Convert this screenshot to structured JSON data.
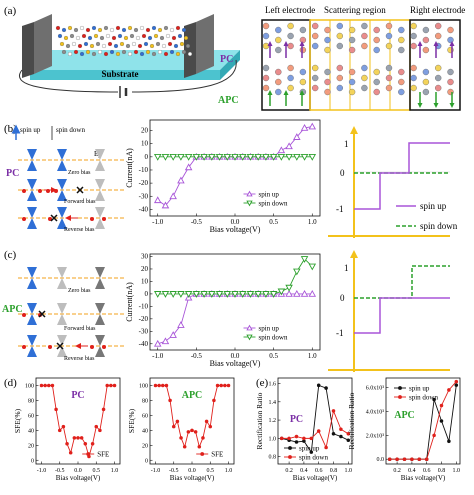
{
  "panel_labels": {
    "a": "(a)",
    "b": "(b)",
    "c": "(c)",
    "d": "(d)",
    "e": "(e)"
  },
  "panel_a": {
    "substrate_label": "Substrate",
    "regions": [
      "Left electrode",
      "Scattering region",
      "Right electrode"
    ],
    "pc_label": "PC",
    "apc_label": "APC"
  },
  "panel_b": {
    "legend_spin_up": "spin up",
    "legend_spin_down": "spin down",
    "ef_label": "E",
    "ef_sub": "f",
    "row_labels": [
      "Zero bias",
      "Forward bias",
      "Reverse bias"
    ],
    "side_label": "PC"
  },
  "panel_c": {
    "row_labels": [
      "Zero bias",
      "Forward bias",
      "Reverse bias"
    ],
    "side_label": "APC"
  },
  "step_legend": {
    "spin_up": "spin up",
    "spin_down": "spin down"
  },
  "step_ticks": {
    "top": "1",
    "mid": "0",
    "bot": "-1"
  },
  "chart_data": [
    {
      "type": "line",
      "id": "iv_pc",
      "xlabel": "Bias voltage(V)",
      "ylabel": "Current(nA)",
      "xlim": [
        -1.1,
        1.1
      ],
      "ylim": [
        -45,
        28
      ],
      "xticks": [
        -1.0,
        -0.5,
        0.0,
        0.5,
        1.0
      ],
      "xtick_labels": [
        "-1.0",
        "-0.5",
        "0.0",
        "0.5",
        "1.0"
      ],
      "yticks": [
        20,
        10,
        0,
        -10,
        -20,
        -30,
        -40
      ],
      "ytick_labels": [
        "20",
        "10",
        "0",
        "-10",
        "-20",
        "-30",
        "-40"
      ],
      "series": [
        {
          "name": "spin up",
          "color": "#a855d8",
          "marker": "triangle-up",
          "x": [
            -1.0,
            -0.9,
            -0.8,
            -0.7,
            -0.6,
            -0.5,
            -0.4,
            -0.3,
            -0.2,
            -0.1,
            0.0,
            0.1,
            0.2,
            0.3,
            0.4,
            0.5,
            0.6,
            0.7,
            0.8,
            0.9,
            1.0
          ],
          "y": [
            -33,
            -37,
            -30,
            -18,
            -8,
            0,
            0,
            0,
            0,
            0,
            0,
            0,
            0,
            0,
            0,
            0,
            5,
            8,
            15,
            22,
            23
          ]
        },
        {
          "name": "spin down",
          "color": "#2ca02c",
          "marker": "triangle-down",
          "x": [
            -1.0,
            -0.9,
            -0.8,
            -0.7,
            -0.6,
            -0.5,
            -0.4,
            -0.3,
            -0.2,
            -0.1,
            0.0,
            0.1,
            0.2,
            0.3,
            0.4,
            0.5,
            0.6,
            0.7,
            0.8,
            0.9,
            1.0
          ],
          "y": [
            0,
            0,
            0,
            0,
            0,
            0,
            0,
            0,
            0,
            0,
            0,
            0,
            0,
            0,
            0,
            0,
            0,
            0,
            0,
            0,
            0
          ]
        }
      ]
    },
    {
      "type": "line",
      "id": "iv_apc",
      "xlabel": "Bias voltage(V)",
      "ylabel": "Current(nA)",
      "xlim": [
        -1.1,
        1.1
      ],
      "ylim": [
        -45,
        32
      ],
      "xticks": [
        -1.0,
        -0.5,
        0.0,
        0.5,
        1.0
      ],
      "xtick_labels": [
        "-1.0",
        "-0.5",
        "0.0",
        "0.5",
        "1.0"
      ],
      "yticks": [
        30,
        20,
        10,
        0,
        -10,
        -20,
        -30,
        -40
      ],
      "ytick_labels": [
        "30",
        "20",
        "10",
        "0",
        "-10",
        "-20",
        "-30",
        "-40"
      ],
      "series": [
        {
          "name": "spin up",
          "color": "#a855d8",
          "marker": "triangle-up",
          "x": [
            -1.0,
            -0.9,
            -0.8,
            -0.7,
            -0.6,
            -0.5,
            -0.4,
            -0.3,
            -0.2,
            -0.1,
            0.0,
            0.1,
            0.2,
            0.3,
            0.4,
            0.5,
            0.6,
            0.7,
            0.8,
            0.9,
            1.0
          ],
          "y": [
            -40,
            -38,
            -33,
            -25,
            -3,
            0,
            0,
            0,
            0,
            0,
            0,
            0,
            0,
            0,
            0,
            0,
            0,
            0,
            0,
            0,
            0
          ]
        },
        {
          "name": "spin down",
          "color": "#2ca02c",
          "marker": "triangle-down",
          "x": [
            -1.0,
            -0.9,
            -0.8,
            -0.7,
            -0.6,
            -0.5,
            -0.4,
            -0.3,
            -0.2,
            -0.1,
            0.0,
            0.1,
            0.2,
            0.3,
            0.4,
            0.5,
            0.6,
            0.7,
            0.8,
            0.9,
            1.0
          ],
          "y": [
            0,
            0,
            0,
            0,
            0,
            0,
            0,
            0,
            0,
            0,
            0,
            0,
            0,
            0,
            0,
            0,
            2,
            5,
            18,
            28,
            22
          ]
        }
      ]
    },
    {
      "type": "line",
      "id": "sfe_pc",
      "title": "PC",
      "xlabel": "Bias voltage(V)",
      "ylabel": "SFE(%)",
      "xlim": [
        -1.15,
        1.15
      ],
      "ylim": [
        -5,
        110
      ],
      "xticks": [
        -1.0,
        -0.5,
        0.0,
        0.5,
        1.0
      ],
      "xtick_labels": [
        "-1.0",
        "-0.5",
        "0.0",
        "0.5",
        "1.0"
      ],
      "yticks": [
        0,
        20,
        40,
        60,
        80,
        100
      ],
      "ytick_labels": [
        "0",
        "20",
        "40",
        "60",
        "80",
        "100"
      ],
      "series": [
        {
          "name": "SFE",
          "color": "#e0201b",
          "marker": "circle",
          "x": [
            -1.0,
            -0.9,
            -0.8,
            -0.7,
            -0.6,
            -0.5,
            -0.4,
            -0.3,
            -0.2,
            -0.1,
            0.0,
            0.1,
            0.2,
            0.3,
            0.4,
            0.5,
            0.6,
            0.7,
            0.8,
            0.9,
            1.0
          ],
          "y": [
            100,
            100,
            100,
            100,
            68,
            40,
            45,
            22,
            10,
            30,
            30,
            30,
            22,
            5,
            22,
            45,
            40,
            68,
            100,
            100,
            100
          ]
        }
      ]
    },
    {
      "type": "line",
      "id": "sfe_apc",
      "title": "APC",
      "xlabel": "Bias voltage(V)",
      "ylabel": "SFE(%)",
      "xlim": [
        -1.15,
        1.15
      ],
      "ylim": [
        -5,
        110
      ],
      "xticks": [
        -1.0,
        -0.5,
        0.0,
        0.5,
        1.0
      ],
      "xtick_labels": [
        "-1.0",
        "-0.5",
        "0.0",
        "0.5",
        "1.0"
      ],
      "yticks": [
        0,
        20,
        40,
        60,
        80,
        100
      ],
      "ytick_labels": [
        "0",
        "20",
        "40",
        "60",
        "80",
        "100"
      ],
      "series": [
        {
          "name": "SFE",
          "color": "#e0201b",
          "marker": "circle",
          "x": [
            -1.0,
            -0.9,
            -0.8,
            -0.7,
            -0.6,
            -0.5,
            -0.4,
            -0.3,
            -0.2,
            -0.1,
            0.0,
            0.1,
            0.2,
            0.3,
            0.4,
            0.5,
            0.6,
            0.7,
            0.8,
            0.9,
            1.0
          ],
          "y": [
            100,
            100,
            100,
            100,
            80,
            45,
            52,
            30,
            18,
            38,
            40,
            38,
            18,
            30,
            52,
            45,
            80,
            100,
            100,
            100,
            100
          ]
        }
      ]
    },
    {
      "type": "line",
      "id": "rr_pc",
      "title": "PC",
      "xlabel": "Bias voltage(V)",
      "ylabel": "Rectification Ratio",
      "xlim": [
        0.05,
        1.05
      ],
      "ylim": [
        0.72,
        1.66
      ],
      "xticks": [
        0.2,
        0.4,
        0.6,
        0.8,
        1.0
      ],
      "xtick_labels": [
        "0.2",
        "0.4",
        "0.6",
        "0.8",
        "1.0"
      ],
      "yticks": [
        0.8,
        1.0,
        1.2,
        1.4,
        1.6
      ],
      "ytick_labels": [
        "0.8",
        "1.0",
        "1.2",
        "1.4",
        "1.6"
      ],
      "series": [
        {
          "name": "spin up",
          "color": "#111111",
          "marker": "circle",
          "x": [
            0.1,
            0.2,
            0.3,
            0.4,
            0.5,
            0.6,
            0.7,
            0.8,
            0.9,
            1.0
          ],
          "y": [
            1.0,
            0.98,
            0.96,
            0.97,
            0.85,
            1.58,
            1.55,
            1.05,
            1.02,
            0.98
          ]
        },
        {
          "name": "spin down",
          "color": "#e0201b",
          "marker": "circle",
          "x": [
            0.1,
            0.2,
            0.3,
            0.4,
            0.5,
            0.6,
            0.7,
            0.8,
            0.9,
            1.0
          ],
          "y": [
            1.0,
            1.0,
            1.02,
            1.0,
            1.0,
            1.08,
            0.9,
            1.3,
            1.1,
            1.05
          ]
        }
      ]
    },
    {
      "type": "line",
      "id": "rr_apc",
      "title": "APC",
      "xlabel": "Bias voltage(V)",
      "ylabel": "Rectification Ratio",
      "xlim": [
        0.05,
        1.05
      ],
      "ylim": [
        -400,
        6800
      ],
      "xticks": [
        0.2,
        0.4,
        0.6,
        0.8,
        1.0
      ],
      "xtick_labels": [
        "0.2",
        "0.4",
        "0.6",
        "0.8",
        "1.0"
      ],
      "yticks": [
        0,
        2000,
        4000,
        6000
      ],
      "ytick_labels": [
        "0.0",
        "2.0x10³",
        "4.0x10³",
        "6.0x10³"
      ],
      "series": [
        {
          "name": "spin up",
          "color": "#111111",
          "marker": "circle",
          "x": [
            0.1,
            0.2,
            0.3,
            0.4,
            0.5,
            0.6,
            0.7,
            0.8,
            0.9,
            1.0
          ],
          "y": [
            0,
            0,
            0,
            0,
            0,
            0,
            5000,
            3200,
            1500,
            6200
          ]
        },
        {
          "name": "spin down",
          "color": "#e0201b",
          "marker": "circle",
          "x": [
            0.1,
            0.2,
            0.3,
            0.4,
            0.5,
            0.6,
            0.7,
            0.8,
            0.9,
            1.0
          ],
          "y": [
            0,
            0,
            0,
            0,
            0,
            0,
            2000,
            4500,
            5800,
            6500
          ]
        }
      ]
    }
  ]
}
